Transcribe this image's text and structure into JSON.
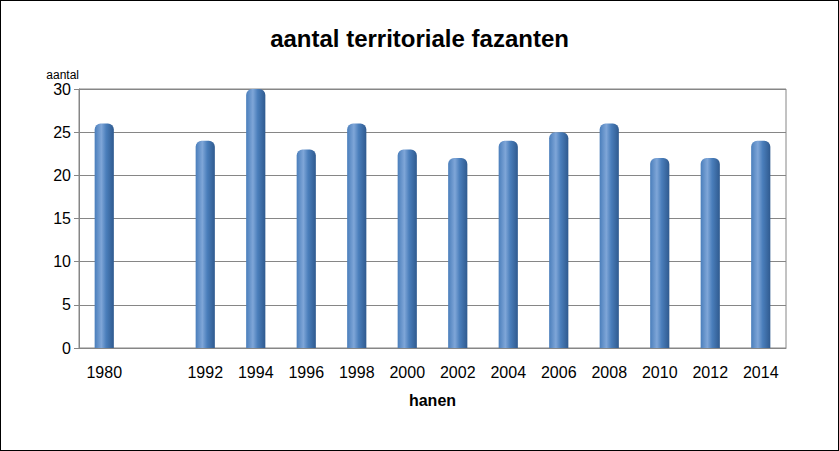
{
  "chart_data": {
    "type": "bar",
    "title": "aantal territoriale fazanten",
    "x_label": "hanen",
    "y_label": "aantal",
    "categories": [
      "1980",
      null,
      "1992",
      "1994",
      "1996",
      "1998",
      "2000",
      "2002",
      "2004",
      "2006",
      "2008",
      "2010",
      "2012",
      "2014"
    ],
    "values": [
      26,
      0,
      24,
      30,
      23,
      26,
      23,
      22,
      24,
      25,
      26,
      22,
      22,
      24
    ],
    "color": "#4a7ebb",
    "ylim": [
      0,
      30
    ],
    "yticks": [
      0,
      5,
      10,
      15,
      20,
      25,
      30
    ],
    "grid": true
  }
}
